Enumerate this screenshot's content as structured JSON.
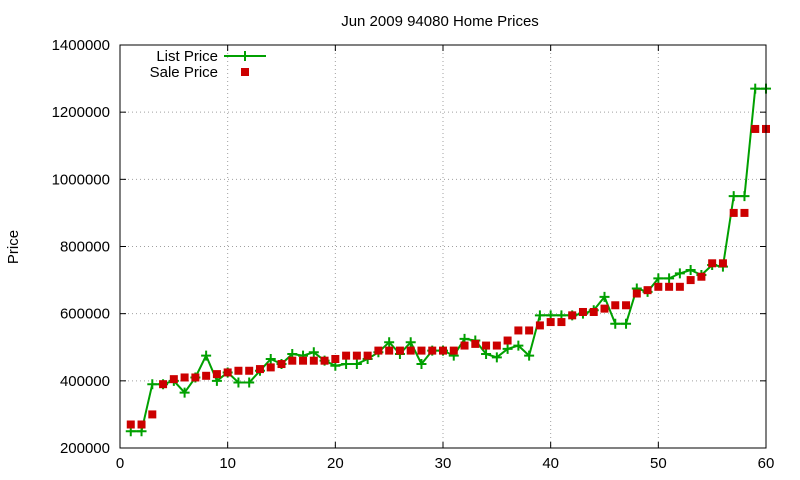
{
  "chart_data": {
    "type": "line",
    "title": "Jun 2009 94080 Home Prices",
    "xlabel": "",
    "ylabel": "Price",
    "xlim": [
      0,
      60
    ],
    "ylim": [
      200000,
      1400000
    ],
    "x_ticks": [
      0,
      10,
      20,
      30,
      40,
      50,
      60
    ],
    "y_ticks": [
      200000,
      400000,
      600000,
      800000,
      1000000,
      1200000,
      1400000
    ],
    "x_tick_labels": [
      "0",
      "10",
      "20",
      "30",
      "40",
      "50",
      "60"
    ],
    "y_tick_labels": [
      "200000",
      "400000",
      "600000",
      "800000",
      "1000000",
      "1200000",
      "1400000"
    ],
    "grid": true,
    "legend_position": "top-left",
    "x": [
      1,
      2,
      3,
      4,
      5,
      6,
      7,
      8,
      9,
      10,
      11,
      12,
      13,
      14,
      15,
      16,
      17,
      18,
      19,
      20,
      21,
      22,
      23,
      24,
      25,
      26,
      27,
      28,
      29,
      30,
      31,
      32,
      33,
      34,
      35,
      36,
      37,
      38,
      39,
      40,
      41,
      42,
      43,
      44,
      45,
      46,
      47,
      48,
      49,
      50,
      51,
      52,
      53,
      54,
      55,
      56,
      57,
      58,
      59,
      60
    ],
    "series": [
      {
        "name": "List Price",
        "style": "linespoints",
        "color": "#00a000",
        "values": [
          250000,
          250000,
          390000,
          390000,
          400000,
          365000,
          410000,
          475000,
          400000,
          425000,
          395000,
          395000,
          430000,
          465000,
          450000,
          480000,
          475000,
          485000,
          460000,
          445000,
          450000,
          450000,
          465000,
          485000,
          515000,
          480000,
          515000,
          450000,
          490000,
          490000,
          475000,
          525000,
          520000,
          480000,
          470000,
          495000,
          505000,
          475000,
          595000,
          595000,
          595000,
          595000,
          600000,
          610000,
          650000,
          570000,
          570000,
          675000,
          665000,
          705000,
          705000,
          720000,
          730000,
          715000,
          745000,
          740000,
          950000,
          950000,
          1270000,
          1270000
        ]
      },
      {
        "name": "Sale Price",
        "style": "points",
        "color": "#cc0000",
        "values": [
          270000,
          270000,
          300000,
          390000,
          405000,
          410000,
          410000,
          415000,
          420000,
          425000,
          430000,
          430000,
          435000,
          440000,
          450000,
          460000,
          460000,
          460000,
          460000,
          465000,
          475000,
          475000,
          475000,
          490000,
          490000,
          490000,
          490000,
          490000,
          490000,
          490000,
          490000,
          505000,
          510000,
          505000,
          505000,
          520000,
          550000,
          550000,
          565000,
          575000,
          575000,
          595000,
          605000,
          605000,
          615000,
          625000,
          625000,
          660000,
          670000,
          680000,
          680000,
          680000,
          700000,
          710000,
          750000,
          750000,
          900000,
          900000,
          1150000,
          1150000
        ]
      }
    ]
  }
}
